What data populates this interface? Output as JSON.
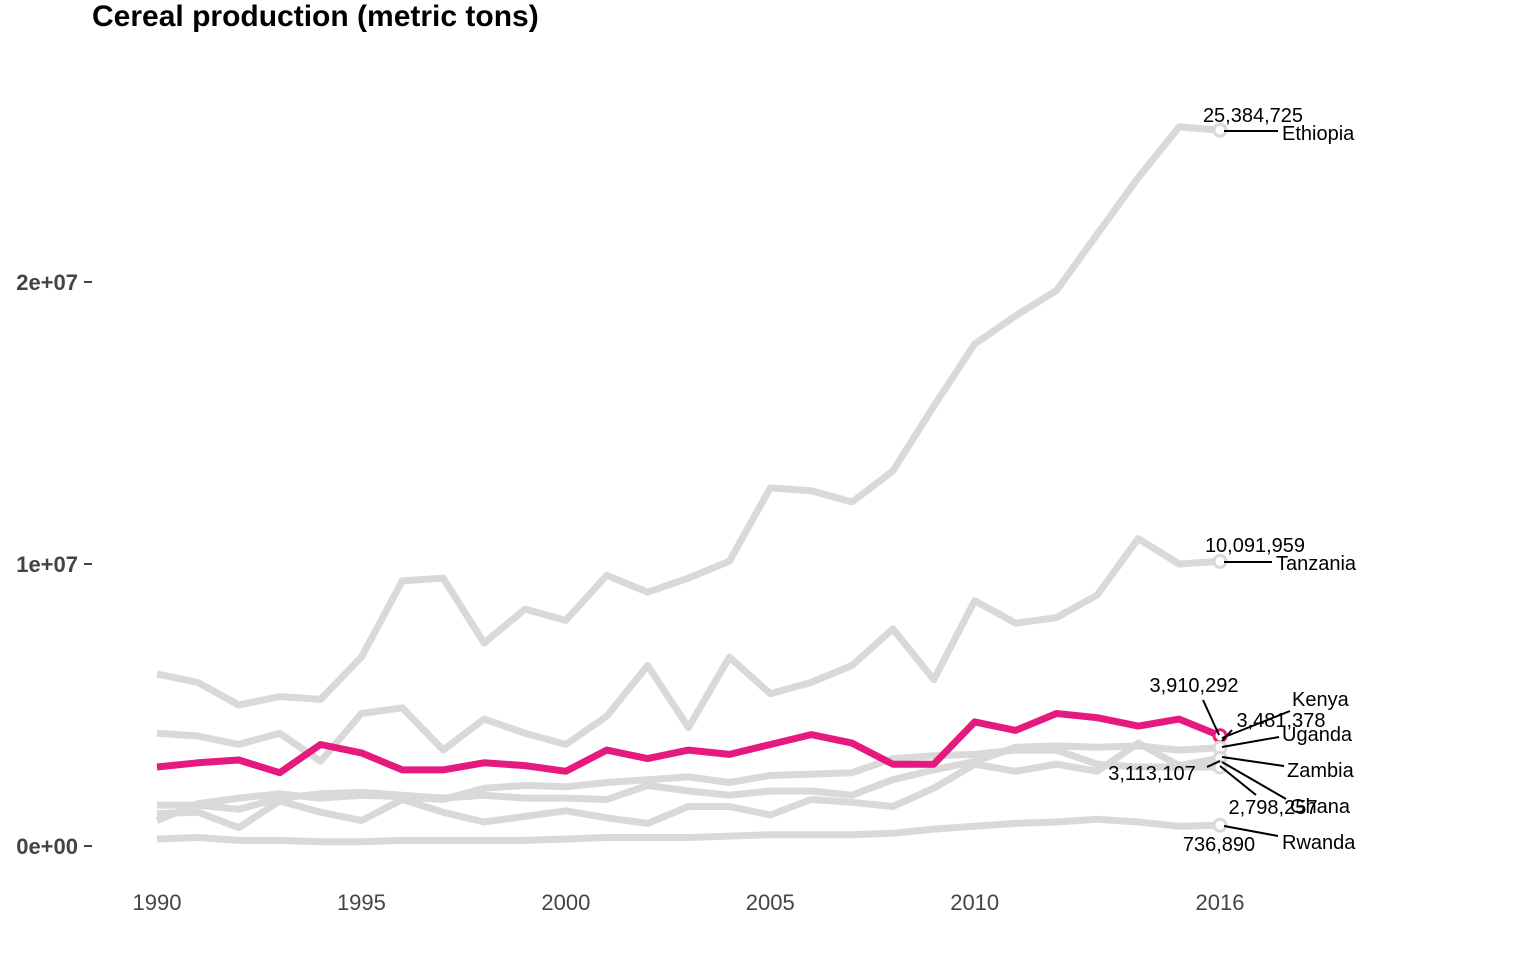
{
  "chart_data": {
    "type": "line",
    "title": "Cereal production (metric tons)",
    "xlabel": "",
    "ylabel": "",
    "xlim": [
      1990,
      2016
    ],
    "ylim": [
      0,
      27000000
    ],
    "y_ticks": [
      {
        "value": 0,
        "label": "0e+00"
      },
      {
        "value": 10000000,
        "label": "1e+07"
      },
      {
        "value": 20000000,
        "label": "2e+07"
      }
    ],
    "x_ticks": [
      {
        "value": 1990,
        "label": "1990"
      },
      {
        "value": 1995,
        "label": "1995"
      },
      {
        "value": 2000,
        "label": "2000"
      },
      {
        "value": 2005,
        "label": "2005"
      },
      {
        "value": 2010,
        "label": "2010"
      },
      {
        "value": 2016,
        "label": "2016"
      }
    ],
    "grid": false,
    "legend": "none",
    "highlight_color": "#e6197f",
    "base_color": "#d9d9d9",
    "x": [
      1990,
      1991,
      1992,
      1993,
      1994,
      1995,
      1996,
      1997,
      1998,
      1999,
      2000,
      2001,
      2002,
      2003,
      2004,
      2005,
      2006,
      2007,
      2008,
      2009,
      2010,
      2011,
      2012,
      2013,
      2014,
      2015,
      2016
    ],
    "series": [
      {
        "name": "Ethiopia",
        "highlight": false,
        "end_label": "25,384,725",
        "values": [
          6100000,
          5800000,
          5000000,
          5300000,
          5200000,
          6700000,
          9400000,
          9500000,
          7200000,
          8400000,
          8000000,
          9600000,
          9000000,
          9500000,
          10100000,
          12700000,
          12600000,
          12200000,
          13300000,
          15600000,
          17800000,
          18800000,
          19700000,
          21700000,
          23700000,
          25500000,
          25384725
        ]
      },
      {
        "name": "Tanzania",
        "highlight": false,
        "end_label": "10,091,959",
        "values": [
          4000000,
          3900000,
          3600000,
          4000000,
          3000000,
          4700000,
          4900000,
          3400000,
          4500000,
          4000000,
          3600000,
          4600000,
          6400000,
          4200000,
          6700000,
          5400000,
          5800000,
          6400000,
          7700000,
          5900000,
          8700000,
          7900000,
          8100000,
          8900000,
          10900000,
          10000000,
          10091959
        ]
      },
      {
        "name": "Kenya",
        "highlight": true,
        "end_label": "3,910,292",
        "values": [
          2800000,
          2950000,
          3050000,
          2600000,
          3600000,
          3300000,
          2700000,
          2700000,
          2950000,
          2850000,
          2650000,
          3400000,
          3100000,
          3400000,
          3250000,
          3600000,
          3950000,
          3650000,
          2900000,
          2900000,
          4400000,
          4100000,
          4700000,
          4550000,
          4250000,
          4500000,
          3910292
        ]
      },
      {
        "name": "Uganda",
        "highlight": false,
        "end_label": "3,481,378",
        "values": [
          1450000,
          1450000,
          1300000,
          1700000,
          1850000,
          1900000,
          1800000,
          1700000,
          1800000,
          1700000,
          1700000,
          1650000,
          2150000,
          1950000,
          1800000,
          1950000,
          1950000,
          1800000,
          2350000,
          2700000,
          3000000,
          3500000,
          3550000,
          3500000,
          3550000,
          3400000,
          3481378
        ]
      },
      {
        "name": "Zambia",
        "highlight": false,
        "end_label": "3,113,107",
        "values": [
          1150000,
          1200000,
          650000,
          1600000,
          1200000,
          900000,
          1650000,
          1200000,
          850000,
          1050000,
          1250000,
          1000000,
          800000,
          1400000,
          1400000,
          1100000,
          1650000,
          1550000,
          1400000,
          2050000,
          2900000,
          2650000,
          2900000,
          2650000,
          3650000,
          2850000,
          3113107
        ]
      },
      {
        "name": "Ghana",
        "highlight": false,
        "end_label": "2,798,257",
        "values": [
          900000,
          1500000,
          1700000,
          1850000,
          1700000,
          1800000,
          1750000,
          1650000,
          2050000,
          2150000,
          2100000,
          2250000,
          2350000,
          2450000,
          2250000,
          2500000,
          2550000,
          2600000,
          3100000,
          3200000,
          3250000,
          3400000,
          3400000,
          2900000,
          2800000,
          2800000,
          2798257
        ]
      },
      {
        "name": "Rwanda",
        "highlight": false,
        "end_label": "736,890",
        "values": [
          250000,
          300000,
          200000,
          200000,
          150000,
          150000,
          200000,
          200000,
          200000,
          200000,
          250000,
          300000,
          300000,
          300000,
          350000,
          400000,
          400000,
          400000,
          450000,
          600000,
          700000,
          800000,
          850000,
          950000,
          850000,
          700000,
          736890
        ]
      }
    ]
  }
}
